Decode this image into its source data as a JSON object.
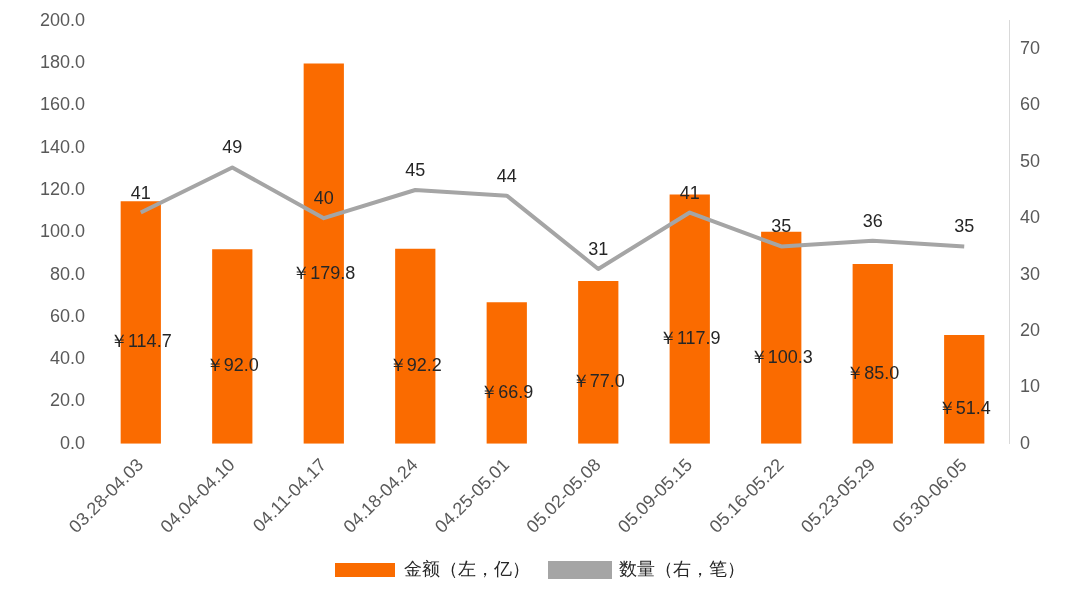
{
  "chart_data": {
    "type": "bar",
    "categories": [
      "03.28-04.03",
      "04.04-04.10",
      "04.11-04.17",
      "04.18-04.24",
      "04.25-05.01",
      "05.02-05.08",
      "05.09-05.15",
      "05.16-05.22",
      "05.23-05.29",
      "05.30-06.05"
    ],
    "series": [
      {
        "name": "金额（左，亿）",
        "color": "#fa6b00",
        "values": [
          114.7,
          92.0,
          179.8,
          92.2,
          66.9,
          77.0,
          117.9,
          100.3,
          85.0,
          51.4
        ],
        "value_labels": [
          "￥114.7",
          "￥92.0",
          "￥179.8",
          "￥92.2",
          "￥66.9",
          "￥77.0",
          "￥117.9",
          "￥100.3",
          "￥85.0",
          "￥51.4"
        ]
      },
      {
        "name": "数量（右，笔）",
        "type": "line",
        "axis": "y2",
        "color": "#a5a5a5",
        "values": [
          41,
          49,
          40,
          45,
          44,
          31,
          41,
          35,
          36,
          35
        ],
        "value_labels": [
          "41",
          "49",
          "40",
          "45",
          "44",
          "31",
          "41",
          "35",
          "36",
          "35"
        ]
      }
    ],
    "ylim": [
      0,
      200
    ],
    "yticks": [
      {
        "value": 0,
        "label": "0.0"
      },
      {
        "value": 20,
        "label": "20.0"
      },
      {
        "value": 40,
        "label": "40.0"
      },
      {
        "value": 60,
        "label": "60.0"
      },
      {
        "value": 80,
        "label": "80.0"
      },
      {
        "value": 100,
        "label": "100.0"
      },
      {
        "value": 120,
        "label": "120.0"
      },
      {
        "value": 140,
        "label": "140.0"
      },
      {
        "value": 160,
        "label": "160.0"
      },
      {
        "value": 180,
        "label": "180.0"
      },
      {
        "value": 200,
        "label": "200.0"
      }
    ],
    "y2lim": [
      0,
      75
    ],
    "y2ticks": [
      0,
      10,
      20,
      30,
      40,
      50,
      60,
      70
    ],
    "grid": false,
    "legend": "bottom",
    "marker": "none"
  }
}
